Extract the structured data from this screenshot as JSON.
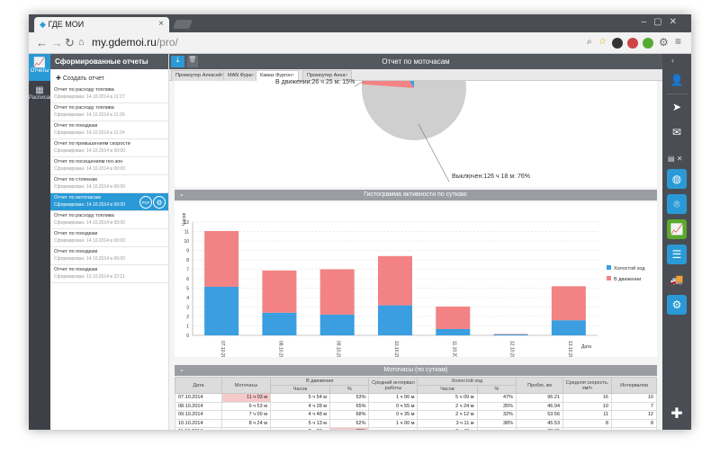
{
  "browser": {
    "tab_title": "ГДЕ МОИ",
    "url_host": "my.gdemoi.ru",
    "url_path": "/pro/"
  },
  "left_rail": {
    "items": [
      {
        "label": "Отчеты",
        "icon": "chart-icon"
      },
      {
        "label": "Расписания",
        "icon": "calendar-icon"
      }
    ]
  },
  "sidebar": {
    "title": "Сформированные отчеты",
    "create_label": "Создать отчет",
    "reports": [
      {
        "title": "Отчет по расходу топлива",
        "date": "Сформирован: 14.10.2014 в 11:27"
      },
      {
        "title": "Отчет по расходу топлива",
        "date": "Сформирован: 14.10.2014 в 11:26"
      },
      {
        "title": "Отчет по поездкам",
        "date": "Сформирован: 14.10.2014 в 11:24"
      },
      {
        "title": "Отчет по превышениям скорости",
        "date": "Сформирован: 14.10.2014 в 00:00"
      },
      {
        "title": "Отчет по посещениям гео-зон",
        "date": "Сформирован: 14.10.2014 в 00:00"
      },
      {
        "title": "Отчет по стоянкам",
        "date": "Сформирован: 14.10.2014 в 00:00"
      },
      {
        "title": "Отчет по моточасам",
        "date": "Сформирован: 14.10.2014 в 00:00",
        "selected": true,
        "pdf": "PDF"
      },
      {
        "title": "Отчет по расходу топлива",
        "date": "Сформирован: 14.10.2014 в 00:00"
      },
      {
        "title": "Отчет по поездкам",
        "date": "Сформирован: 14.10.2014 в 00:00"
      },
      {
        "title": "Отчет по поездкам",
        "date": "Сформирован: 14.10.2014 в 00:00"
      },
      {
        "title": "Отчет по поездкам",
        "date": "Сформирован: 13.10.2014 в 22:11"
      }
    ]
  },
  "main": {
    "title": "Отчет по моточасам",
    "tabs": [
      "Промоутер Алексей",
      "MAN Фура",
      "Камаз Фургон",
      "Промоутер Анна"
    ],
    "active_tab": 2
  },
  "pie": {
    "label_moving": "В движении:26 ч 25 м: 15%",
    "label_off": "Выключен:126 ч 18 м: 76%"
  },
  "histogram": {
    "title": "Гистограмма активности по суткам:",
    "ylabel": "Часов",
    "xlabel": "Дата",
    "legend": [
      "Холостой ход",
      "В движении"
    ]
  },
  "table": {
    "title": "Моточасы (по суткам)",
    "headers": {
      "date": "Дата",
      "motohours": "Моточасы",
      "moving": "В движении",
      "avg_interval": "Средний интервал работы",
      "idle": "Холостой ход",
      "mileage": "Пробег, км",
      "avg_speed": "Средняя скорость, км/ч",
      "intervals": "Интервалов",
      "hours": "Часов",
      "pct": "%"
    },
    "rows": [
      {
        "date": "07.10.2014",
        "moto": "11 ч 03 м",
        "mov_h": "5 ч 54 м",
        "mov_p": "53%",
        "avg": "1 ч 06 м",
        "idle_h": "5 ч 09 м",
        "idle_p": "47%",
        "km": "96.21",
        "speed": "16",
        "n": "10"
      },
      {
        "date": "08.10.2014",
        "moto": "6 ч 53 м",
        "mov_h": "4 ч 28 м",
        "mov_p": "65%",
        "avg": "0 ч 55 м",
        "idle_h": "2 ч 24 м",
        "idle_p": "35%",
        "km": "46.94",
        "speed": "10",
        "n": "7"
      },
      {
        "date": "09.10.2014",
        "moto": "7 ч 00 м",
        "mov_h": "4 ч 48 м",
        "mov_p": "68%",
        "avg": "0 ч 35 м",
        "idle_h": "2 ч 12 м",
        "idle_p": "32%",
        "km": "53.56",
        "speed": "11",
        "n": "12"
      },
      {
        "date": "10.10.2014",
        "moto": "8 ч 24 м",
        "mov_h": "5 ч 13 м",
        "mov_p": "62%",
        "avg": "1 ч 00 м",
        "idle_h": "3 ч 11 м",
        "idle_p": "38%",
        "km": "45.53",
        "speed": "8",
        "n": "8"
      },
      {
        "date": "11.10.2014",
        "moto": "",
        "mov_h": "2 ч 23 м",
        "mov_p": "78%",
        "avg": "",
        "idle_h": "0 ч 40 м",
        "idle_p": "",
        "km": "33.85",
        "speed": "",
        "n": ""
      }
    ]
  },
  "colors": {
    "idle": "#3a9ee0",
    "moving": "#f28284",
    "off": "#cfcfcf",
    "accent": "#2a9ad6"
  },
  "chart_data": {
    "type": "bar",
    "stacked": true,
    "xlabel": "Дата",
    "ylabel": "Часов",
    "ylim": [
      0,
      12
    ],
    "categories": [
      "07.10.2014",
      "08.10.2014",
      "09.10.2014",
      "10.10.2014",
      "11.10.2014",
      "12.10.2014",
      "13.10.2014"
    ],
    "series": [
      {
        "name": "Холостой ход",
        "values": [
          5.15,
          2.4,
          2.2,
          3.18,
          0.67,
          0.1,
          1.6
        ]
      },
      {
        "name": "В движении",
        "values": [
          5.9,
          4.47,
          4.8,
          5.22,
          2.38,
          0.05,
          3.6
        ]
      }
    ],
    "legend_position": "right",
    "grid": true
  }
}
